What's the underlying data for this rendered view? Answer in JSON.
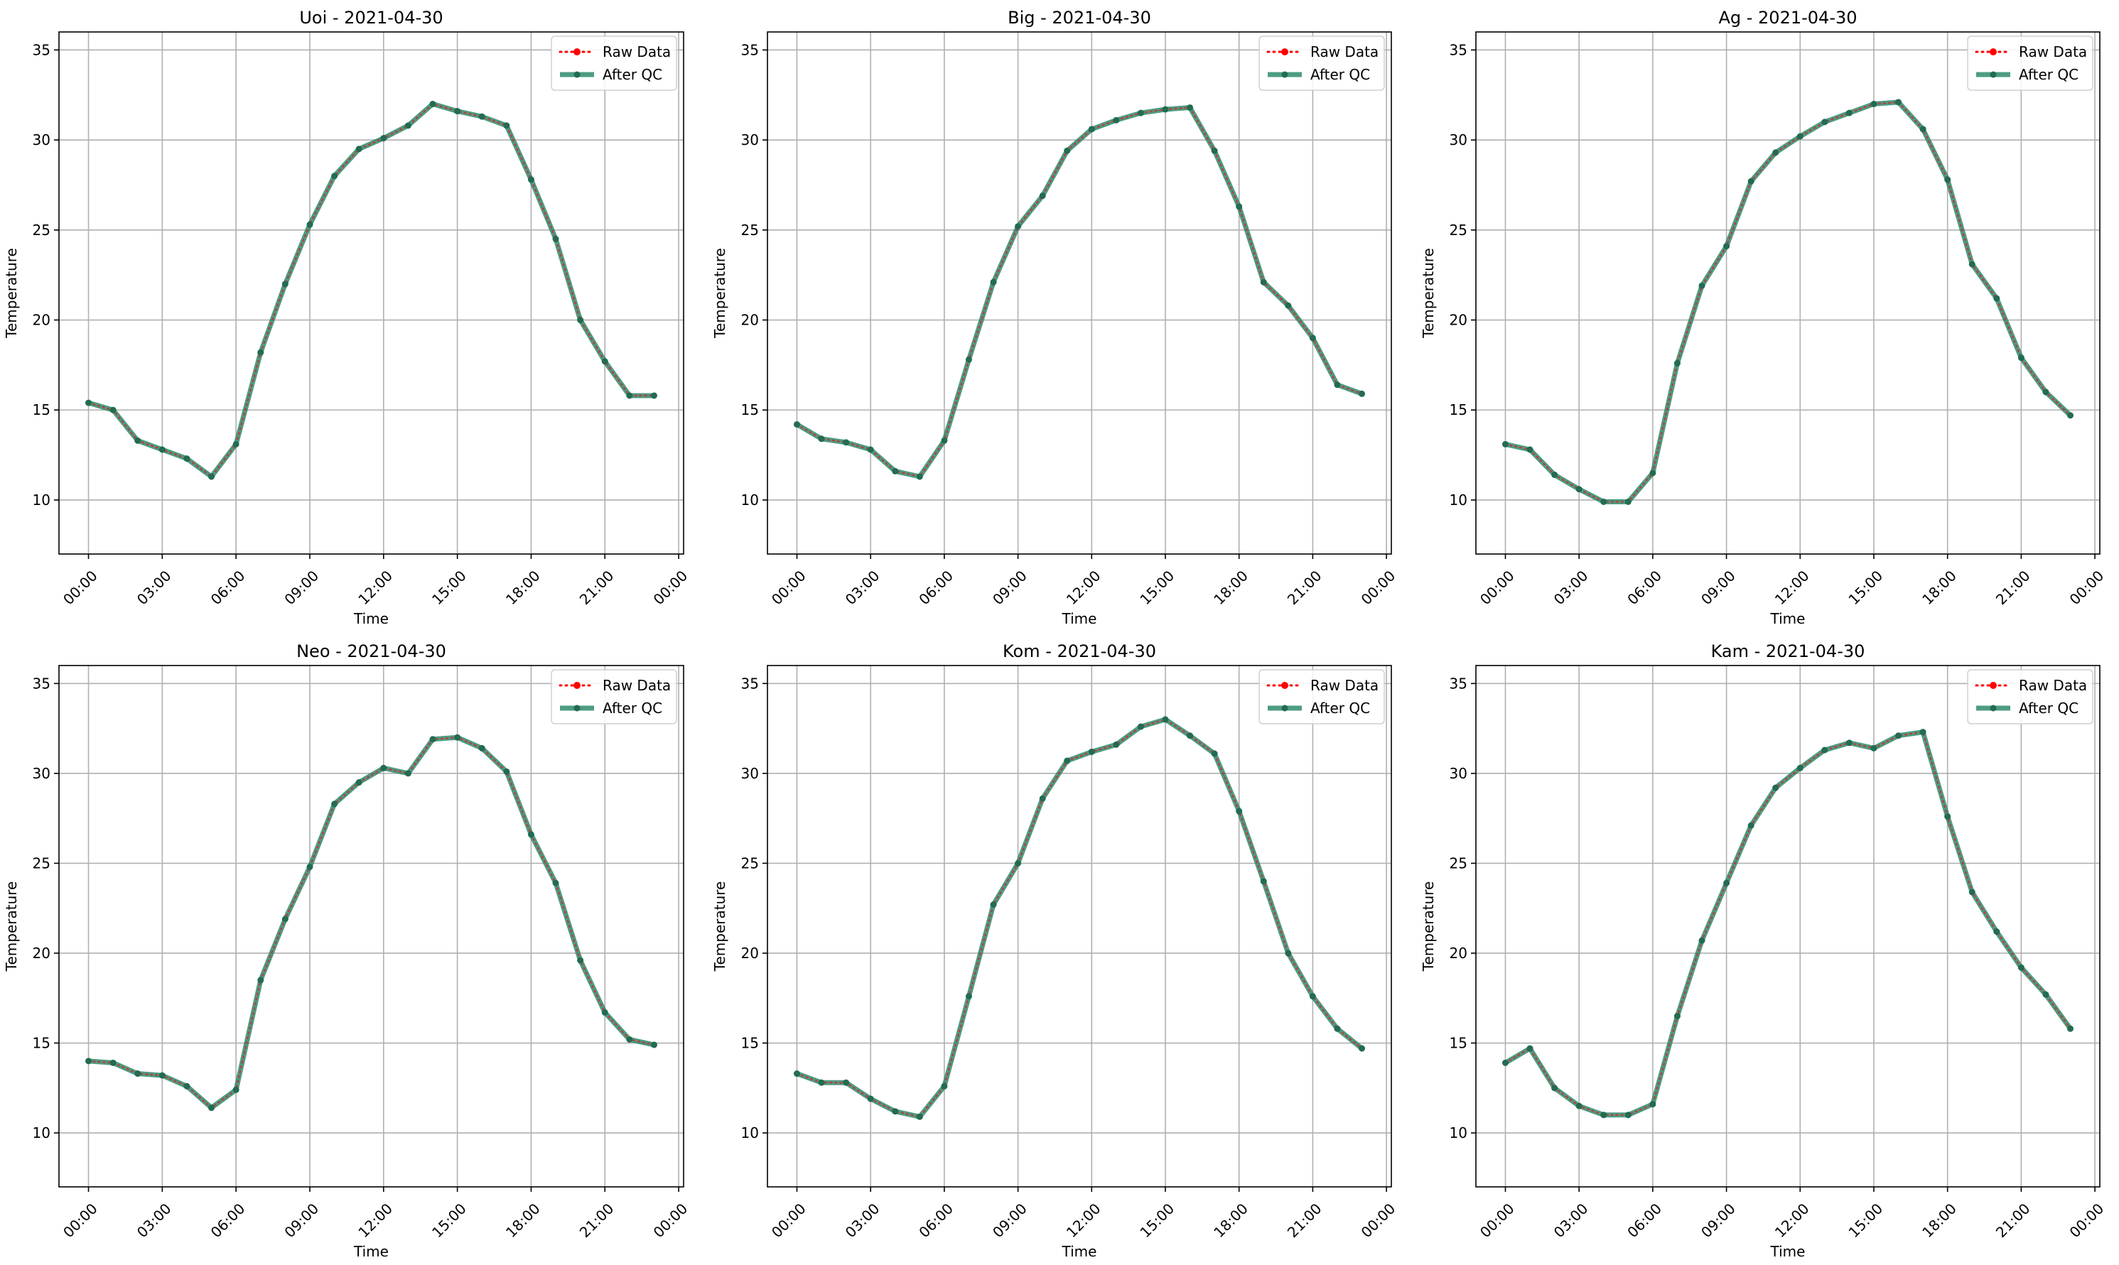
{
  "chart_data": [
    {
      "type": "line",
      "title": "Uoi - 2021-04-30",
      "xlabel": "Time",
      "ylabel": "Temperature",
      "xticks": [
        "00:00",
        "03:00",
        "06:00",
        "09:00",
        "12:00",
        "15:00",
        "18:00",
        "21:00",
        "00:00"
      ],
      "yticks": [
        10,
        15,
        20,
        25,
        30,
        35
      ],
      "xlim_hours": [
        -1.2,
        24.2
      ],
      "ylim": [
        7,
        36
      ],
      "grid": true,
      "legend_position": "top-right",
      "series": [
        {
          "name": "Raw Data",
          "color": "#ff0000",
          "x_hours": [
            0,
            1,
            2,
            3,
            4,
            5,
            6,
            7,
            8,
            9,
            10,
            11,
            12,
            13,
            14,
            15,
            16,
            17,
            18,
            19,
            20,
            21,
            22,
            23
          ],
          "values": [
            15.4,
            15.0,
            13.3,
            12.8,
            12.3,
            11.3,
            13.1,
            18.2,
            22.0,
            25.3,
            28.0,
            29.5,
            30.1,
            30.8,
            32.0,
            31.6,
            31.3,
            30.8,
            27.8,
            24.5,
            20.0,
            17.7,
            15.8,
            15.8
          ]
        },
        {
          "name": "After QC",
          "color": "#2e8b6e",
          "x_hours": [
            0,
            1,
            2,
            3,
            4,
            5,
            6,
            7,
            8,
            9,
            10,
            11,
            12,
            13,
            14,
            15,
            16,
            17,
            18,
            19,
            20,
            21,
            22,
            23
          ],
          "values": [
            15.4,
            15.0,
            13.3,
            12.8,
            12.3,
            11.3,
            13.1,
            18.2,
            22.0,
            25.3,
            28.0,
            29.5,
            30.1,
            30.8,
            32.0,
            31.6,
            31.3,
            30.8,
            27.8,
            24.5,
            20.0,
            17.7,
            15.8,
            15.8
          ]
        }
      ]
    },
    {
      "type": "line",
      "title": "Big - 2021-04-30",
      "xlabel": "Time",
      "ylabel": "Temperature",
      "xticks": [
        "00:00",
        "03:00",
        "06:00",
        "09:00",
        "12:00",
        "15:00",
        "18:00",
        "21:00",
        "00:00"
      ],
      "yticks": [
        10,
        15,
        20,
        25,
        30,
        35
      ],
      "xlim_hours": [
        -1.2,
        24.2
      ],
      "ylim": [
        7,
        36
      ],
      "grid": true,
      "legend_position": "top-right",
      "series": [
        {
          "name": "Raw Data",
          "color": "#ff0000",
          "x_hours": [
            0,
            1,
            2,
            3,
            4,
            5,
            6,
            7,
            8,
            9,
            10,
            11,
            12,
            13,
            14,
            15,
            16,
            17,
            18,
            19,
            20,
            21,
            22,
            23
          ],
          "values": [
            14.2,
            13.4,
            13.2,
            12.8,
            11.6,
            11.3,
            13.3,
            17.8,
            22.1,
            25.2,
            26.9,
            29.4,
            30.6,
            31.1,
            31.5,
            31.7,
            31.8,
            29.4,
            26.3,
            22.1,
            20.8,
            19.0,
            16.4,
            15.9
          ]
        },
        {
          "name": "After QC",
          "color": "#2e8b6e",
          "x_hours": [
            0,
            1,
            2,
            3,
            4,
            5,
            6,
            7,
            8,
            9,
            10,
            11,
            12,
            13,
            14,
            15,
            16,
            17,
            18,
            19,
            20,
            21,
            22,
            23
          ],
          "values": [
            14.2,
            13.4,
            13.2,
            12.8,
            11.6,
            11.3,
            13.3,
            17.8,
            22.1,
            25.2,
            26.9,
            29.4,
            30.6,
            31.1,
            31.5,
            31.7,
            31.8,
            29.4,
            26.3,
            22.1,
            20.8,
            19.0,
            16.4,
            15.9
          ]
        }
      ]
    },
    {
      "type": "line",
      "title": "Ag - 2021-04-30",
      "xlabel": "Time",
      "ylabel": "Temperature",
      "xticks": [
        "00:00",
        "03:00",
        "06:00",
        "09:00",
        "12:00",
        "15:00",
        "18:00",
        "21:00",
        "00:00"
      ],
      "yticks": [
        10,
        15,
        20,
        25,
        30,
        35
      ],
      "xlim_hours": [
        -1.2,
        24.2
      ],
      "ylim": [
        7,
        36
      ],
      "grid": true,
      "legend_position": "top-right",
      "series": [
        {
          "name": "Raw Data",
          "color": "#ff0000",
          "x_hours": [
            0,
            1,
            2,
            3,
            4,
            5,
            6,
            7,
            8,
            9,
            10,
            11,
            12,
            13,
            14,
            15,
            16,
            17,
            18,
            19,
            20,
            21,
            22,
            23
          ],
          "values": [
            13.1,
            12.8,
            11.4,
            10.6,
            9.9,
            9.9,
            11.5,
            17.6,
            21.9,
            24.1,
            27.7,
            29.3,
            30.2,
            31.0,
            31.5,
            32.0,
            32.1,
            30.6,
            27.8,
            23.1,
            21.2,
            17.9,
            16.0,
            14.7
          ]
        },
        {
          "name": "After QC",
          "color": "#2e8b6e",
          "x_hours": [
            0,
            1,
            2,
            3,
            4,
            5,
            6,
            7,
            8,
            9,
            10,
            11,
            12,
            13,
            14,
            15,
            16,
            17,
            18,
            19,
            20,
            21,
            22,
            23
          ],
          "values": [
            13.1,
            12.8,
            11.4,
            10.6,
            9.9,
            9.9,
            11.5,
            17.6,
            21.9,
            24.1,
            27.7,
            29.3,
            30.2,
            31.0,
            31.5,
            32.0,
            32.1,
            30.6,
            27.8,
            23.1,
            21.2,
            17.9,
            16.0,
            14.7
          ]
        }
      ]
    },
    {
      "type": "line",
      "title": "Neo - 2021-04-30",
      "xlabel": "Time",
      "ylabel": "Temperature",
      "xticks": [
        "00:00",
        "03:00",
        "06:00",
        "09:00",
        "12:00",
        "15:00",
        "18:00",
        "21:00",
        "00:00"
      ],
      "yticks": [
        10,
        15,
        20,
        25,
        30,
        35
      ],
      "xlim_hours": [
        -1.2,
        24.2
      ],
      "ylim": [
        7,
        36
      ],
      "grid": true,
      "legend_position": "top-right",
      "series": [
        {
          "name": "Raw Data",
          "color": "#ff0000",
          "x_hours": [
            0,
            1,
            2,
            3,
            4,
            5,
            6,
            7,
            8,
            9,
            10,
            11,
            12,
            13,
            14,
            15,
            16,
            17,
            18,
            19,
            20,
            21,
            22,
            23
          ],
          "values": [
            14.0,
            13.9,
            13.3,
            13.2,
            12.6,
            11.4,
            12.4,
            18.5,
            21.9,
            24.8,
            28.3,
            29.5,
            30.3,
            30.0,
            31.9,
            32.0,
            31.4,
            30.1,
            26.6,
            23.9,
            19.6,
            16.7,
            15.2,
            14.9
          ]
        },
        {
          "name": "After QC",
          "color": "#2e8b6e",
          "x_hours": [
            0,
            1,
            2,
            3,
            4,
            5,
            6,
            7,
            8,
            9,
            10,
            11,
            12,
            13,
            14,
            15,
            16,
            17,
            18,
            19,
            20,
            21,
            22,
            23
          ],
          "values": [
            14.0,
            13.9,
            13.3,
            13.2,
            12.6,
            11.4,
            12.4,
            18.5,
            21.9,
            24.8,
            28.3,
            29.5,
            30.3,
            30.0,
            31.9,
            32.0,
            31.4,
            30.1,
            26.6,
            23.9,
            19.6,
            16.7,
            15.2,
            14.9
          ]
        }
      ]
    },
    {
      "type": "line",
      "title": "Kom - 2021-04-30",
      "xlabel": "Time",
      "ylabel": "Temperature",
      "xticks": [
        "00:00",
        "03:00",
        "06:00",
        "09:00",
        "12:00",
        "15:00",
        "18:00",
        "21:00",
        "00:00"
      ],
      "yticks": [
        10,
        15,
        20,
        25,
        30,
        35
      ],
      "xlim_hours": [
        -1.2,
        24.2
      ],
      "ylim": [
        7,
        36
      ],
      "grid": true,
      "legend_position": "top-right",
      "series": [
        {
          "name": "Raw Data",
          "color": "#ff0000",
          "x_hours": [
            0,
            1,
            2,
            3,
            4,
            5,
            6,
            7,
            8,
            9,
            10,
            11,
            12,
            13,
            14,
            15,
            16,
            17,
            18,
            19,
            20,
            21,
            22,
            23
          ],
          "values": [
            13.3,
            12.8,
            12.8,
            11.9,
            11.2,
            10.9,
            12.6,
            17.6,
            22.7,
            25.0,
            28.6,
            30.7,
            31.2,
            31.6,
            32.6,
            33.0,
            32.1,
            31.1,
            27.9,
            24.0,
            20.0,
            17.6,
            15.8,
            14.7
          ]
        },
        {
          "name": "After QC",
          "color": "#2e8b6e",
          "x_hours": [
            0,
            1,
            2,
            3,
            4,
            5,
            6,
            7,
            8,
            9,
            10,
            11,
            12,
            13,
            14,
            15,
            16,
            17,
            18,
            19,
            20,
            21,
            22,
            23
          ],
          "values": [
            13.3,
            12.8,
            12.8,
            11.9,
            11.2,
            10.9,
            12.6,
            17.6,
            22.7,
            25.0,
            28.6,
            30.7,
            31.2,
            31.6,
            32.6,
            33.0,
            32.1,
            31.1,
            27.9,
            24.0,
            20.0,
            17.6,
            15.8,
            14.7
          ]
        }
      ]
    },
    {
      "type": "line",
      "title": "Kam - 2021-04-30",
      "xlabel": "Time",
      "ylabel": "Temperature",
      "xticks": [
        "00:00",
        "03:00",
        "06:00",
        "09:00",
        "12:00",
        "15:00",
        "18:00",
        "21:00",
        "00:00"
      ],
      "yticks": [
        10,
        15,
        20,
        25,
        30,
        35
      ],
      "xlim_hours": [
        -1.2,
        24.2
      ],
      "ylim": [
        7,
        36
      ],
      "grid": true,
      "legend_position": "top-right",
      "series": [
        {
          "name": "Raw Data",
          "color": "#ff0000",
          "x_hours": [
            0,
            1,
            2,
            3,
            4,
            5,
            6,
            7,
            8,
            9,
            10,
            11,
            12,
            13,
            14,
            15,
            16,
            17,
            18,
            19,
            20,
            21,
            22,
            23
          ],
          "values": [
            13.9,
            14.7,
            12.5,
            11.5,
            11.0,
            11.0,
            11.6,
            16.5,
            20.7,
            23.9,
            27.1,
            29.2,
            30.3,
            31.3,
            31.7,
            31.4,
            32.1,
            32.3,
            27.6,
            23.4,
            21.2,
            19.2,
            17.7,
            15.8
          ]
        },
        {
          "name": "After QC",
          "color": "#2e8b6e",
          "x_hours": [
            0,
            1,
            2,
            3,
            4,
            5,
            6,
            7,
            8,
            9,
            10,
            11,
            12,
            13,
            14,
            15,
            16,
            17,
            18,
            19,
            20,
            21,
            22,
            23
          ],
          "values": [
            13.9,
            14.7,
            12.5,
            11.5,
            11.0,
            11.0,
            11.6,
            16.5,
            20.7,
            23.9,
            27.1,
            29.2,
            30.3,
            31.3,
            31.7,
            31.4,
            32.1,
            32.3,
            27.6,
            23.4,
            21.2,
            19.2,
            17.7,
            15.8
          ]
        }
      ]
    }
  ]
}
